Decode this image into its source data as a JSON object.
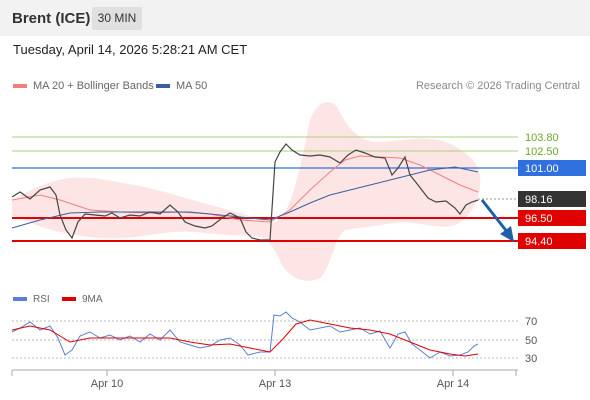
{
  "header": {
    "instrument": "Brent (ICE)",
    "timeframe": "30 MIN"
  },
  "datetime": "Tuesday, April 14, 2026 5:28:21 AM CET",
  "legend": {
    "ma20_label": "MA 20 + Bollinger Bands",
    "ma20_color": "#f08080",
    "ma50_label": "MA 50",
    "ma50_color": "#3a5fa0"
  },
  "credit": "Research © 2026 Trading Central",
  "price_levels": [
    {
      "value": "103.80",
      "color": "#8dc63f",
      "style": "text-green"
    },
    {
      "value": "102.50",
      "color": "#8dc63f",
      "style": "text-green"
    },
    {
      "value": "101.00",
      "color": "#2f6fde",
      "style": "badge-blue"
    },
    {
      "value": "98.16",
      "color": "#333333",
      "style": "badge-dark"
    },
    {
      "value": "96.50",
      "color": "#e00000",
      "style": "badge-red"
    },
    {
      "value": "94.40",
      "color": "#e00000",
      "style": "badge-red"
    }
  ],
  "rsi_legend": {
    "rsi_label": "RSI",
    "rsi_color": "#5b7fd6",
    "ma_label": "9MA",
    "ma_color": "#e00000"
  },
  "rsi_levels": [
    "70",
    "50",
    "30"
  ],
  "x_axis": [
    "Apr 10",
    "Apr 13",
    "Apr 14"
  ]
}
